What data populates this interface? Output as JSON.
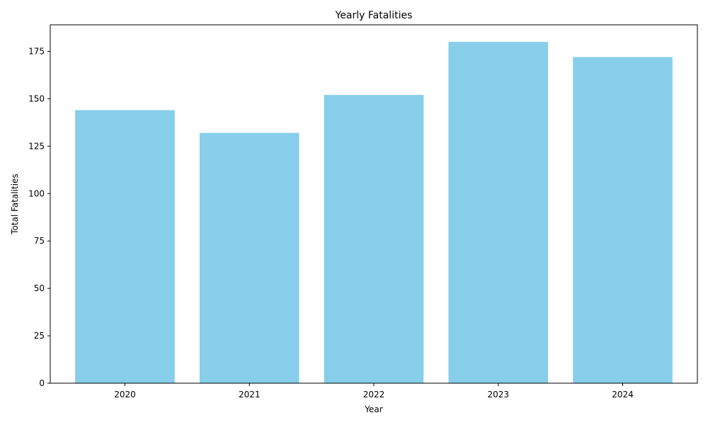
{
  "chart_data": {
    "type": "bar",
    "title": "Yearly Fatalities",
    "xlabel": "Year",
    "ylabel": "Total Fatalities",
    "categories": [
      "2020",
      "2021",
      "2022",
      "2023",
      "2024"
    ],
    "values": [
      144,
      132,
      152,
      180,
      172
    ],
    "ylim": [
      0,
      189
    ],
    "yticks": [
      0,
      25,
      50,
      75,
      100,
      125,
      150,
      175
    ],
    "grid": false,
    "colors": {
      "bar": "#87ceeb",
      "axis": "#000000",
      "background": "#ffffff"
    }
  }
}
